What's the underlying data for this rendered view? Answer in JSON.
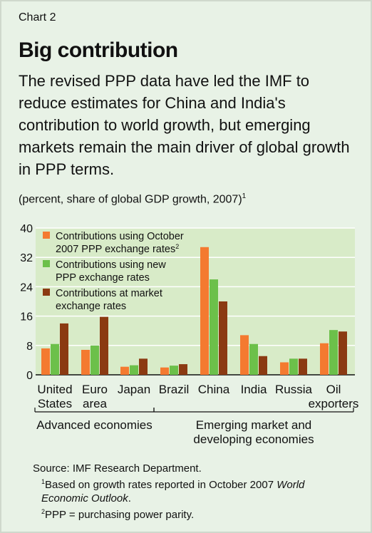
{
  "header": {
    "chart_label": "Chart 2",
    "title": "Big contribution",
    "subtitle": "The revised PPP data have led the IMF to reduce estimates for China and India's contribution to world growth, but emerging markets remain the main driver of global growth in PPP terms.",
    "units": "(percent, share of global GDP growth, 2007)",
    "units_note": "1"
  },
  "chart_data": {
    "type": "bar",
    "ylim": [
      0,
      40
    ],
    "yticks": [
      "0",
      "8",
      "16",
      "24",
      "32",
      "40"
    ],
    "grid": true,
    "legend_position": "top-left",
    "categories": [
      [
        "United",
        "States"
      ],
      [
        "Euro",
        "area"
      ],
      [
        "Japan"
      ],
      [
        "Brazil"
      ],
      [
        "China"
      ],
      [
        "India"
      ],
      [
        "Russia"
      ],
      [
        "Oil",
        "exporters"
      ]
    ],
    "series": [
      {
        "name": "Contributions using October 2007 PPP exchange rates",
        "legend_lines": [
          "Contributions using October",
          "2007 PPP exchange rates"
        ],
        "legend_note": "2",
        "color": "#f47a30",
        "values": [
          7.2,
          6.8,
          2.2,
          2.0,
          34.8,
          10.8,
          3.4,
          8.6
        ]
      },
      {
        "name": "Contributions using new PPP exchange rates",
        "legend_lines": [
          "Contributions using new",
          "PPP exchange rates"
        ],
        "legend_note": "",
        "color": "#6cc04a",
        "values": [
          8.4,
          8.0,
          2.6,
          2.5,
          26.0,
          8.4,
          4.4,
          12.2
        ]
      },
      {
        "name": "Contributions at market exchange rates",
        "legend_lines": [
          "Contributions at market",
          "exchange rates"
        ],
        "legend_note": "",
        "color": "#8b3a12",
        "values": [
          14.0,
          15.8,
          4.4,
          2.9,
          20.0,
          5.1,
          4.4,
          11.8
        ]
      }
    ],
    "groups": [
      {
        "label": [
          "Advanced economies"
        ],
        "from": 0,
        "to": 2
      },
      {
        "label": [
          "Emerging market and",
          "developing economies"
        ],
        "from": 3,
        "to": 7
      }
    ]
  },
  "footnotes": {
    "source": "Source: IMF Research Department.",
    "note1_mark": "1",
    "note1_text": "Based on growth rates reported in October 2007 ",
    "note1_italic": "World",
    "note1_line2_italic": "Economic Outlook",
    "note1_line2_end": ".",
    "note2_mark": "2",
    "note2_text": "PPP = purchasing power parity."
  },
  "colors": {
    "background": "#e8f2e6",
    "plot_background": "#d8ebc8",
    "grid": "#ffffff"
  }
}
